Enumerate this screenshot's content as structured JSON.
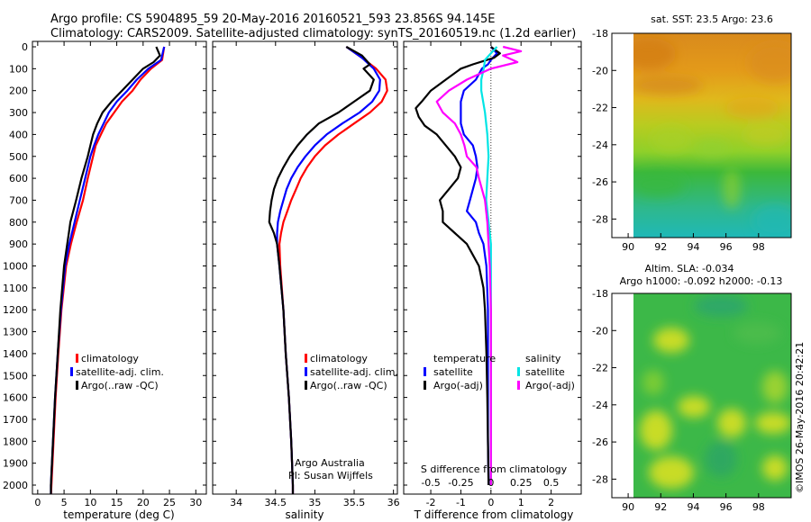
{
  "header": {
    "line1": "Argo profile: CS 5904895_59 20-May-2016 20160521_593 23.856S 94.145E",
    "line2": "Climatology: CARS2009. Satellite-adjusted climatology: synTS_20160519.nc (1.2d earlier)"
  },
  "watermark": "©IMOS 26-May-2016 20:42:21",
  "colors": {
    "climatology": "#ff0000",
    "satellite": "#0000ff",
    "argo": "#000000",
    "salinity_satellite": "#00e5e5",
    "salinity_argo": "#ff00ff"
  },
  "chart_data": [
    {
      "type": "line",
      "id": "temperature",
      "xlabel": "temperature (deg C)",
      "ylabel": "",
      "xlim": [
        -1,
        32
      ],
      "ylim": [
        2070,
        0
      ],
      "xticks": [
        0,
        5,
        10,
        15,
        20,
        25,
        30
      ],
      "yticks": [
        0,
        100,
        200,
        300,
        400,
        500,
        600,
        700,
        800,
        900,
        1000,
        1100,
        1200,
        1300,
        1400,
        1500,
        1600,
        1700,
        1800,
        1900,
        2000
      ],
      "legend": {
        "entries": [
          "climatology",
          "satellite-adj. clim.",
          "Argo(..raw -QC)"
        ],
        "placement": "lower-right"
      },
      "series": [
        {
          "key": "climatology",
          "color": "#ff0000",
          "depth": [
            0,
            60,
            100,
            150,
            200,
            250,
            300,
            350,
            400,
            450,
            500,
            600,
            700,
            800,
            900,
            1000,
            1200,
            1400,
            1600,
            1800,
            2000,
            2050
          ],
          "values": [
            24.0,
            23.6,
            21.5,
            19.5,
            18.0,
            16.0,
            14.5,
            13.0,
            12.0,
            11.0,
            10.5,
            9.5,
            8.6,
            7.4,
            6.3,
            5.4,
            4.5,
            3.9,
            3.4,
            3.0,
            2.6,
            2.5
          ]
        },
        {
          "key": "satellite",
          "color": "#0000ff",
          "depth": [
            0,
            60,
            100,
            150,
            200,
            250,
            300,
            350,
            400,
            450,
            500,
            600,
            700,
            800,
            900,
            1000,
            1200,
            1400,
            1600,
            1800,
            2000,
            2050
          ],
          "values": [
            24.0,
            23.4,
            21.0,
            18.8,
            17.0,
            15.0,
            13.5,
            12.5,
            11.5,
            10.7,
            10.0,
            9.0,
            8.0,
            7.0,
            6.0,
            5.2,
            4.4,
            3.8,
            3.3,
            2.9,
            2.5,
            2.5
          ]
        },
        {
          "key": "argo",
          "color": "#000000",
          "depth": [
            0,
            40,
            70,
            100,
            150,
            200,
            250,
            300,
            350,
            400,
            450,
            500,
            600,
            700,
            800,
            850,
            900,
            1000,
            1200,
            1400,
            1600,
            1800,
            2000,
            2050
          ],
          "values": [
            22.5,
            23.2,
            22.0,
            20.0,
            18.0,
            16.0,
            14.0,
            12.3,
            11.3,
            10.5,
            10.0,
            9.5,
            8.3,
            7.3,
            6.2,
            5.9,
            5.6,
            5.0,
            4.3,
            3.8,
            3.3,
            2.9,
            2.5,
            2.5
          ]
        }
      ]
    },
    {
      "type": "line",
      "id": "salinity",
      "xlabel": "salinity",
      "ylabel": "",
      "xlim": [
        33.7,
        36.05
      ],
      "ylim": [
        2070,
        0
      ],
      "xticks": [
        34,
        34.5,
        35,
        35.5,
        36
      ],
      "xtick_labels": [
        "34",
        "34.5",
        "35",
        "35.5",
        "36"
      ],
      "legend": {
        "entries": [
          "climatology",
          "satellite-adj. clim.",
          "Argo(..raw -QC)"
        ],
        "placement": "lower-right"
      },
      "annotation": [
        "Argo Australia",
        "PI: Susan Wijffels"
      ],
      "series": [
        {
          "key": "climatology",
          "color": "#ff0000",
          "depth": [
            0,
            50,
            100,
            150,
            200,
            250,
            300,
            350,
            400,
            450,
            500,
            550,
            600,
            650,
            700,
            750,
            800,
            850,
            900,
            1000,
            1200,
            1400,
            1600,
            1800,
            2000,
            2050
          ],
          "values": [
            35.4,
            35.6,
            35.78,
            35.9,
            35.92,
            35.85,
            35.7,
            35.5,
            35.3,
            35.13,
            35.0,
            34.9,
            34.82,
            34.76,
            34.7,
            34.65,
            34.6,
            34.57,
            34.55,
            34.56,
            34.6,
            34.63,
            34.67,
            34.7,
            34.72,
            34.72
          ]
        },
        {
          "key": "satellite",
          "color": "#0000ff",
          "depth": [
            0,
            50,
            100,
            150,
            200,
            250,
            300,
            350,
            400,
            450,
            500,
            550,
            600,
            650,
            700,
            750,
            800,
            850,
            900,
            1000,
            1200,
            1400,
            1600,
            1800,
            2000,
            2050
          ],
          "values": [
            35.4,
            35.6,
            35.75,
            35.83,
            35.82,
            35.73,
            35.57,
            35.35,
            35.15,
            35.0,
            34.88,
            34.78,
            34.7,
            34.64,
            34.6,
            34.56,
            34.53,
            34.52,
            34.52,
            34.55,
            34.6,
            34.63,
            34.67,
            34.7,
            34.72,
            34.72
          ]
        },
        {
          "key": "argo",
          "color": "#000000",
          "depth": [
            0,
            40,
            80,
            100,
            150,
            200,
            250,
            300,
            350,
            400,
            450,
            500,
            550,
            600,
            650,
            700,
            750,
            800,
            850,
            900,
            1000,
            1200,
            1400,
            1600,
            1800,
            2000,
            2050
          ],
          "values": [
            35.4,
            35.6,
            35.7,
            35.62,
            35.75,
            35.7,
            35.5,
            35.3,
            35.05,
            34.9,
            34.78,
            34.68,
            34.6,
            34.53,
            34.48,
            34.45,
            34.43,
            34.42,
            34.48,
            34.52,
            34.55,
            34.6,
            34.63,
            34.67,
            34.7,
            34.72,
            34.72
          ]
        }
      ]
    },
    {
      "type": "line",
      "id": "difference",
      "xlabel": "T difference from climatology",
      "xlabel_top": "S difference from climatology",
      "ylabel": "",
      "xlim": [
        -2.9,
        3.0
      ],
      "ylim": [
        2070,
        0
      ],
      "xticks": [
        -2,
        -1,
        0,
        1,
        2
      ],
      "s_ticks": [
        -0.5,
        -0.25,
        0,
        0.25,
        0.5
      ],
      "s_tick_labels": [
        "-0.5",
        "-0.25",
        "0",
        "0.25",
        "0.5"
      ],
      "legend": {
        "temperature_title": "temperature",
        "salinity_title": "salinity",
        "entries": [
          "satellite",
          "Argo(-adj)",
          "satellite",
          "Argo(-adj)"
        ],
        "placement": "middle"
      },
      "series": [
        {
          "key": "t_satellite",
          "group": "temperature",
          "color": "#0000ff",
          "depth": [
            0,
            30,
            60,
            80,
            100,
            150,
            200,
            250,
            300,
            350,
            400,
            450,
            500,
            550,
            600,
            650,
            700,
            750,
            800,
            850,
            900,
            1000,
            1200,
            1400,
            1600,
            1800,
            2000
          ],
          "values": [
            0.0,
            0.2,
            0.0,
            -0.1,
            -0.3,
            -0.5,
            -0.9,
            -1.0,
            -1.0,
            -1.0,
            -0.9,
            -0.6,
            -0.5,
            -0.45,
            -0.5,
            -0.6,
            -0.7,
            -0.8,
            -0.5,
            -0.4,
            -0.25,
            -0.15,
            -0.1,
            -0.1,
            -0.1,
            -0.1,
            -0.08
          ]
        },
        {
          "key": "t_argo",
          "group": "temperature",
          "color": "#000000",
          "depth": [
            0,
            30,
            50,
            80,
            100,
            150,
            200,
            250,
            280,
            320,
            360,
            400,
            450,
            500,
            550,
            600,
            650,
            700,
            750,
            800,
            850,
            900,
            950,
            1000,
            1100,
            1200,
            1400,
            1600,
            1800,
            2000
          ],
          "values": [
            0.0,
            0.3,
            0.1,
            -0.6,
            -1.0,
            -1.5,
            -2.0,
            -2.3,
            -2.5,
            -2.4,
            -2.2,
            -1.8,
            -1.5,
            -1.2,
            -1.0,
            -1.1,
            -1.4,
            -1.7,
            -1.6,
            -1.6,
            -1.2,
            -0.8,
            -0.6,
            -0.4,
            -0.25,
            -0.2,
            -0.15,
            -0.12,
            -0.1,
            -0.08
          ]
        },
        {
          "key": "s_satellite",
          "group": "salinity",
          "color": "#00e5e5",
          "depth": [
            0,
            30,
            60,
            100,
            150,
            200,
            300,
            400,
            500,
            600,
            700,
            800,
            900,
            1000,
            1200,
            1400,
            1600,
            1800,
            2000
          ],
          "values": [
            0.05,
            0.0,
            -0.05,
            -0.06,
            -0.08,
            -0.08,
            -0.05,
            -0.03,
            -0.02,
            -0.03,
            -0.04,
            -0.02,
            0.0,
            0.0,
            0.0,
            0.0,
            0.0,
            0.0,
            0.0
          ]
        },
        {
          "key": "s_argo",
          "group": "salinity",
          "color": "#ff00ff",
          "depth": [
            0,
            20,
            40,
            70,
            100,
            150,
            200,
            250,
            300,
            350,
            400,
            450,
            500,
            550,
            600,
            700,
            800,
            900,
            1000,
            1200,
            1400,
            1600,
            1800,
            2000
          ],
          "values": [
            0.1,
            0.25,
            0.1,
            0.22,
            0.0,
            -0.2,
            -0.35,
            -0.45,
            -0.4,
            -0.3,
            -0.25,
            -0.22,
            -0.2,
            -0.12,
            -0.1,
            -0.05,
            -0.03,
            -0.02,
            -0.01,
            0.0,
            0.0,
            0.0,
            0.0,
            0.0
          ]
        }
      ]
    },
    {
      "type": "heatmap",
      "id": "sst_map",
      "title": "sat. SST: 23.5 Argo: 23.6",
      "xlim": [
        89,
        100
      ],
      "ylim": [
        -29,
        -18
      ],
      "xticks": [
        90,
        92,
        94,
        96,
        98
      ],
      "yticks": [
        -18,
        -20,
        -22,
        -24,
        -26,
        -28
      ],
      "colors_north_to_south": [
        "#d98a1c",
        "#e8a81a",
        "#c7c81e",
        "#9ad22a",
        "#3dba3a",
        "#2fb88a",
        "#1fb8b0"
      ]
    },
    {
      "type": "heatmap",
      "id": "sla_map",
      "title_line1": "Altim. SLA: -0.034",
      "title_line2": "Argo h1000: -0.092 h2000: -0.13",
      "xlim": [
        89,
        100
      ],
      "ylim": [
        -29,
        -18
      ],
      "xticks": [
        90,
        92,
        94,
        96,
        98
      ],
      "yticks": [
        -18,
        -20,
        -22,
        -24,
        -26,
        -28
      ],
      "base_color": "#3cb848",
      "blob_color": "#c8dc28"
    }
  ]
}
